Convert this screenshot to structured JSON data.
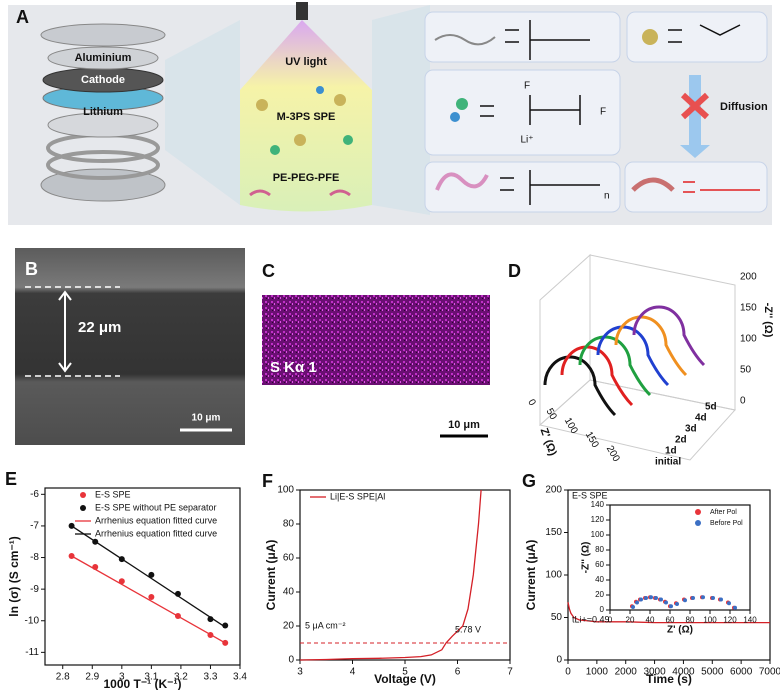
{
  "panels": {
    "a": {
      "letter": "A",
      "cell": [
        "Aluminium",
        "Cathode",
        "Lithium"
      ],
      "uv": "UV light",
      "spe": "M-3PS SPE",
      "polymer": "PE-PEG-PFE",
      "diffusion": "Diffusion",
      "chem": [
        "F",
        "F",
        "Li⁺",
        "n"
      ]
    },
    "b": {
      "letter": "B",
      "thickness": "22 μm",
      "scale": "10 μm"
    },
    "c": {
      "letter": "C",
      "element": "S Kα 1",
      "scale": "10 μm"
    },
    "d": {
      "letter": "D",
      "z_label": "-Z'' (Ω)",
      "x_label": "Z' (Ω)",
      "z_ticks": [
        "200",
        "150",
        "100",
        "50",
        "0"
      ],
      "x_ticks": [
        "0",
        "50",
        "100",
        "150",
        "200"
      ],
      "days": [
        "initial",
        "1d",
        "2d",
        "3d",
        "4d",
        "5d"
      ]
    }
  },
  "chart_data": [
    {
      "type": "scatter",
      "panel": "E",
      "xlabel": "1000 T⁻¹ (K⁻¹)",
      "ylabel": "ln (σ) (S cm⁻¹)",
      "xlim": [
        2.74,
        3.4
      ],
      "xticks": [
        2.8,
        2.9,
        3.0,
        3.1,
        3.2,
        3.3,
        3.4
      ],
      "ylim": [
        -11.4,
        -5.8
      ],
      "yticks": [
        -11,
        -10,
        -9,
        -8,
        -7,
        -6
      ],
      "series": [
        {
          "name": "E-S SPE",
          "mode": "markers",
          "color": "#e8343a",
          "x": [
            2.83,
            2.91,
            3.0,
            3.1,
            3.19,
            3.3,
            3.35
          ],
          "values": [
            -7.95,
            -8.3,
            -8.75,
            -9.25,
            -9.85,
            -10.45,
            -10.7
          ]
        },
        {
          "name": "E-S SPE without PE separator",
          "mode": "markers",
          "color": "#111111",
          "x": [
            2.83,
            2.91,
            3.0,
            3.1,
            3.19,
            3.3,
            3.35
          ],
          "values": [
            -7.0,
            -7.5,
            -8.05,
            -8.55,
            -9.15,
            -9.95,
            -10.15
          ]
        },
        {
          "name": "Arrhenius  equation fitted curve",
          "mode": "line",
          "color": "#e8343a",
          "x": [
            2.83,
            3.35
          ],
          "values": [
            -7.95,
            -10.7
          ]
        },
        {
          "name": "Arrhenius  equation fitted curve",
          "mode": "line",
          "color": "#111111",
          "x": [
            2.83,
            3.35
          ],
          "values": [
            -7.0,
            -10.2
          ]
        }
      ]
    },
    {
      "type": "line",
      "panel": "F",
      "xlabel": "Voltage (V)",
      "ylabel": "Current (μA)",
      "xlim": [
        3,
        7
      ],
      "xticks": [
        3,
        4,
        5,
        6,
        7
      ],
      "ylim": [
        0,
        100
      ],
      "yticks": [
        0,
        20,
        40,
        60,
        80,
        100
      ],
      "hline": 10,
      "annotations": [
        "5 μA cm⁻²",
        "5.78 V"
      ],
      "series": [
        {
          "name": "Li|E-S SPE|Al",
          "mode": "line",
          "color": "#d42027",
          "x": [
            3,
            3.5,
            4,
            4.5,
            5,
            5.3,
            5.5,
            5.7,
            5.78,
            5.9,
            6.0,
            6.1,
            6.2,
            6.3,
            6.4,
            6.45
          ],
          "values": [
            0,
            0.3,
            0.8,
            1,
            1.5,
            2,
            3,
            6,
            10,
            14,
            17,
            20,
            30,
            50,
            80,
            100
          ]
        }
      ]
    },
    {
      "type": "line",
      "panel": "G",
      "xlabel": "Time (s)",
      "ylabel": "Current (μA)",
      "xlim": [
        0,
        7000
      ],
      "xticks": [
        0,
        1000,
        2000,
        3000,
        4000,
        5000,
        6000,
        7000
      ],
      "ylim": [
        0,
        200
      ],
      "yticks": [
        0,
        50,
        100,
        150,
        200
      ],
      "annotations": [
        "E-S SPE",
        "tLi+=0.49"
      ],
      "series": [
        {
          "mode": "line",
          "color": "#d42027",
          "x": [
            0,
            50,
            100,
            200,
            400,
            700,
            1000,
            2000,
            3000,
            4000,
            5000,
            6000,
            7000
          ],
          "values": [
            68,
            60,
            55,
            50,
            47,
            46,
            45,
            45,
            44,
            44,
            44,
            44,
            44
          ]
        }
      ],
      "inset": {
        "type": "scatter",
        "xlabel": "Z' (Ω)",
        "ylabel": "-Z'' (Ω)",
        "xlim": [
          0,
          140
        ],
        "xticks": [
          0,
          20,
          40,
          60,
          80,
          100,
          120,
          140
        ],
        "ylim": [
          0,
          140
        ],
        "yticks": [
          0,
          20,
          40,
          60,
          80,
          100,
          120,
          140
        ],
        "series": [
          {
            "name": "After Pol",
            "mode": "markers",
            "color": "#e8343a",
            "x": [
              22,
              26,
              30,
              35,
              40,
              45,
              50,
              55,
              60,
              66,
              74,
              82,
              92,
              102,
              110,
              118,
              124
            ],
            "values": [
              5,
              11,
              14,
              16,
              17,
              16,
              14,
              11,
              5,
              9,
              14,
              16,
              17,
              16,
              14,
              10,
              3
            ]
          },
          {
            "name": "Before Pol",
            "mode": "markers",
            "color": "#3b6fc4",
            "x": [
              23,
              27,
              31,
              36,
              41,
              46,
              51,
              56,
              61,
              67,
              75,
              83,
              93,
              103,
              111,
              119,
              125
            ],
            "values": [
              4,
              10,
              14,
              16,
              17,
              16,
              14,
              10,
              5,
              8,
              13,
              16,
              17,
              16,
              14,
              9,
              3
            ]
          }
        ]
      }
    }
  ]
}
